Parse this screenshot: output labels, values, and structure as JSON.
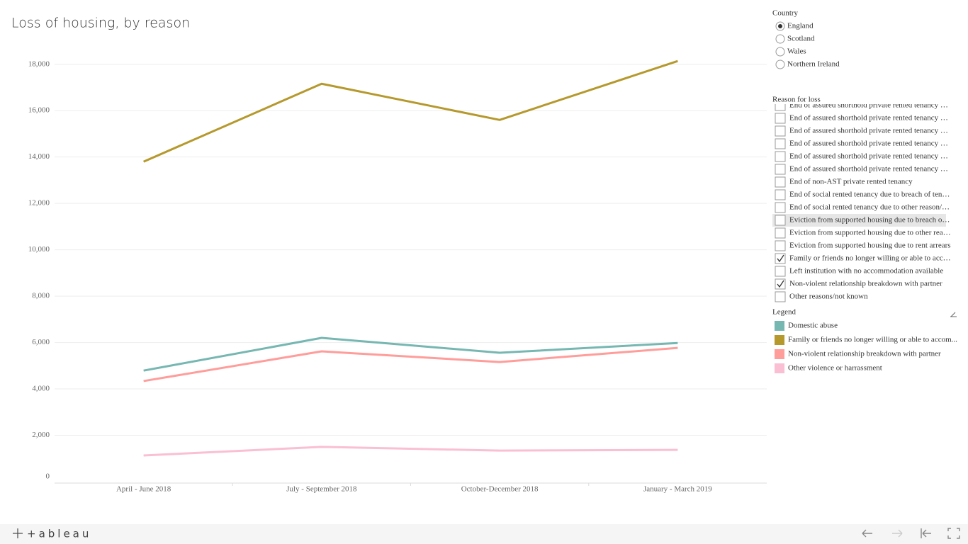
{
  "chart_data": {
    "type": "line",
    "title": "Loss of housing, by reason",
    "categories": [
      "April - June 2018",
      "July - September 2018",
      "October-December 2018",
      "January - March 2019"
    ],
    "series": [
      {
        "name": "Domestic abuse",
        "color": "#76b7b2",
        "values": [
          4790,
          6200,
          5560,
          5980
        ]
      },
      {
        "name": "Family or friends no longer willing or able to accom...",
        "color": "#b6992d",
        "values": [
          13800,
          17160,
          15600,
          18140
        ]
      },
      {
        "name": "Non-violent relationship breakdown with partner",
        "color": "#ff9d9a",
        "values": [
          4340,
          5620,
          5160,
          5770
        ]
      },
      {
        "name": "Other violence or harrassment",
        "color": "#fabfd2",
        "values": [
          1130,
          1500,
          1340,
          1370
        ]
      }
    ],
    "ylim": [
      0,
      19000
    ],
    "yticks": [
      0,
      {
        "value": 2000,
        "label": "2,000"
      },
      {
        "value": 4000,
        "label": "4,000"
      },
      {
        "value": 6000,
        "label": "6,000"
      },
      {
        "value": 8000,
        "label": "8,000"
      },
      {
        "value": 10000,
        "label": "10,000"
      },
      {
        "value": 12000,
        "label": "12,000"
      },
      {
        "value": 14000,
        "label": "14,000"
      },
      {
        "value": 16000,
        "label": "16,000"
      },
      {
        "value": 18000,
        "label": "18,000"
      }
    ],
    "grid": true,
    "legend_title": "Legend"
  },
  "filters": {
    "country": {
      "title": "Country",
      "options": [
        "England",
        "Scotland",
        "Wales",
        "Northern Ireland"
      ],
      "selected": 0
    },
    "reason": {
      "title": "Reason for loss",
      "highlighted": 9,
      "items": [
        {
          "label": "End of assured shorthold private rented tenancy …",
          "checked": false
        },
        {
          "label": "End of assured shorthold private rented tenancy …",
          "checked": false
        },
        {
          "label": "End of assured shorthold private rented tenancy …",
          "checked": false
        },
        {
          "label": "End of assured shorthold private rented tenancy …",
          "checked": false
        },
        {
          "label": "End of assured shorthold private rented tenancy …",
          "checked": false
        },
        {
          "label": "End of assured shorthold private rented tenancy …",
          "checked": false
        },
        {
          "label": "End of non-AST private rented tenancy",
          "checked": false
        },
        {
          "label": "End of social rented tenancy due to breach of ten…",
          "checked": false
        },
        {
          "label": "End of social rented tenancy due to other reason/…",
          "checked": false
        },
        {
          "label": "Eviction from supported housing due to breach o…",
          "checked": false
        },
        {
          "label": "Eviction from supported housing due to other rea…",
          "checked": false
        },
        {
          "label": "Eviction from supported housing due to rent arrears",
          "checked": false
        },
        {
          "label": "Family or friends no longer willing or able to acc…",
          "checked": true
        },
        {
          "label": "Left institution with no accommodation available",
          "checked": false
        },
        {
          "label": "Non-violent relationship breakdown with partner",
          "checked": true
        },
        {
          "label": "Other reasons/not known",
          "checked": false
        }
      ]
    }
  },
  "footer": {
    "logo": "+ableau"
  }
}
